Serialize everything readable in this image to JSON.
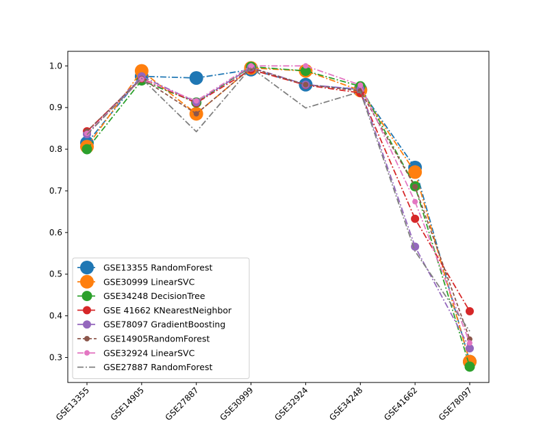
{
  "chart_data": {
    "type": "line",
    "title": "",
    "xlabel": "",
    "ylabel": "",
    "categories": [
      "GSE13355",
      "GSE14905",
      "GSE27887",
      "GSE30999",
      "GSE32924",
      "GSE34248",
      "GSE41662",
      "GSE78097"
    ],
    "ylim": [
      0.24,
      1.035
    ],
    "yticks": [
      "0.3",
      "0.4",
      "0.5",
      "0.6",
      "0.7",
      "0.8",
      "0.9",
      "1.0"
    ],
    "grid": false,
    "legend_position": "lower-left",
    "series": [
      {
        "name": "GSE13355 RandomForest",
        "color": "#1f77b4",
        "dash": "dashdot",
        "marker": "circle",
        "marker_size": "large",
        "values": [
          0.815,
          0.975,
          0.971,
          0.991,
          0.955,
          0.943,
          0.756,
          0.29
        ]
      },
      {
        "name": "GSE30999 LinearSVC",
        "color": "#ff7f0e",
        "dash": "dashdot",
        "marker": "circle",
        "marker_size": "large",
        "values": [
          0.806,
          0.988,
          0.885,
          0.995,
          0.988,
          0.941,
          0.745,
          0.29
        ]
      },
      {
        "name": "GSE34248 DecisionTree",
        "color": "#2ca02c",
        "dash": "dashdot",
        "marker": "circle",
        "marker_size": "medium",
        "values": [
          0.8,
          0.965,
          0.912,
          0.998,
          0.988,
          0.951,
          0.711,
          0.278
        ]
      },
      {
        "name": "GSE 41662 KNearestNeighbor",
        "color": "#d62728",
        "dash": "dashdot",
        "marker": "circle",
        "marker_size": "small",
        "values": [
          0.843,
          0.97,
          0.911,
          0.991,
          0.954,
          0.935,
          0.633,
          0.411
        ]
      },
      {
        "name": "GSE78097 GradientBoosting",
        "color": "#9467bd",
        "dash": "dashdot",
        "marker": "circle",
        "marker_size": "small",
        "values": [
          0.836,
          0.975,
          0.913,
          0.996,
          0.955,
          0.944,
          0.566,
          0.322
        ]
      },
      {
        "name": "GSE14905RandomForest",
        "color": "#8c564b",
        "dash": "dashed",
        "marker": "circle",
        "marker_size": "tiny",
        "values": [
          0.843,
          0.97,
          0.885,
          0.995,
          0.955,
          0.94,
          0.71,
          0.344
        ]
      },
      {
        "name": "GSE32924 LinearSVC",
        "color": "#e377c2",
        "dash": "dashdot",
        "marker": "circle",
        "marker_size": "tiny",
        "values": [
          0.838,
          0.968,
          0.916,
          1.0,
          1.0,
          0.954,
          0.674,
          0.335
        ]
      },
      {
        "name": "GSE27887 RandomForest",
        "color": "#7f7f7f",
        "dash": "dashdot",
        "marker": "none",
        "marker_size": "none",
        "values": [
          0.835,
          0.97,
          0.842,
          0.996,
          0.899,
          0.938,
          0.555,
          0.363
        ]
      }
    ]
  }
}
